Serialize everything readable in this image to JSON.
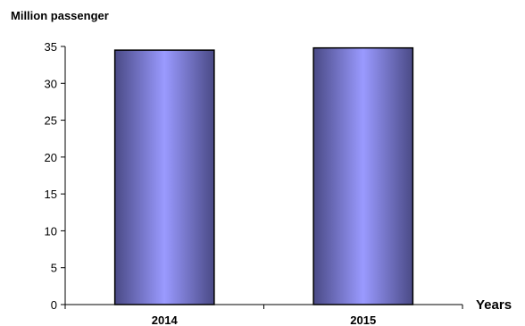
{
  "chart_data": {
    "type": "bar",
    "categories": [
      "2014",
      "2015"
    ],
    "values": [
      34.5,
      34.8
    ],
    "title": "",
    "ylabel": "Million passenger",
    "xlabel": "Years",
    "ylim": [
      0,
      35
    ],
    "yticks": [
      0,
      5,
      10,
      15,
      20,
      25,
      30,
      35
    ],
    "grid": false,
    "legend": "none",
    "bar_colors": {
      "edge": "#4a4a86",
      "center": "#9a9aff",
      "stroke": "#000000"
    }
  }
}
